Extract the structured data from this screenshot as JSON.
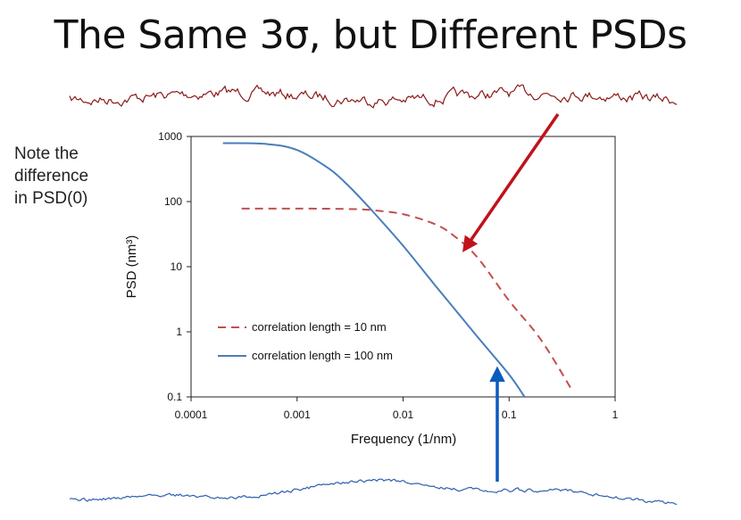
{
  "slide": {
    "title": "The Same 3σ, but Different PSDs",
    "note_lines": [
      "Note the",
      "difference",
      "in PSD(0)"
    ]
  },
  "colors": {
    "series_10nm": "#c0504d",
    "series_100nm": "#4a7ebb",
    "arrow_red": "#c0121b",
    "arrow_blue": "#0b5bbd",
    "rough_top": "#8b1a1a",
    "rough_bottom": "#2f5fb0"
  },
  "chart_data": {
    "type": "line",
    "title": "",
    "xlabel": "Frequency (1/nm)",
    "ylabel": "PSD (nm³)",
    "x_scale": "log",
    "y_scale": "log",
    "xlim": [
      0.0001,
      1
    ],
    "ylim": [
      0.1,
      1000
    ],
    "x_ticks": [
      "0.0001",
      "0.001",
      "0.01",
      "0.1",
      "1"
    ],
    "y_ticks": [
      "0.1",
      "1",
      "10",
      "100",
      "1000"
    ],
    "grid": false,
    "legend_position": "lower-left inside",
    "series": [
      {
        "name": "correlation length = 10 nm",
        "style": "dashed",
        "color": "#c0504d",
        "x": [
          0.0003,
          0.001,
          0.003,
          0.005,
          0.01,
          0.02,
          0.03,
          0.05,
          0.1,
          0.2,
          0.4
        ],
        "y": [
          78,
          78,
          77,
          74,
          64,
          45,
          30,
          14,
          3.0,
          0.75,
          0.12
        ]
      },
      {
        "name": "correlation length = 100 nm",
        "style": "solid",
        "color": "#4a7ebb",
        "x": [
          0.0002,
          0.0005,
          0.001,
          0.002,
          0.003,
          0.005,
          0.01,
          0.02,
          0.05,
          0.1,
          0.14
        ],
        "y": [
          790,
          770,
          620,
          320,
          180,
          75,
          21,
          5.2,
          0.85,
          0.22,
          0.1
        ]
      }
    ]
  }
}
